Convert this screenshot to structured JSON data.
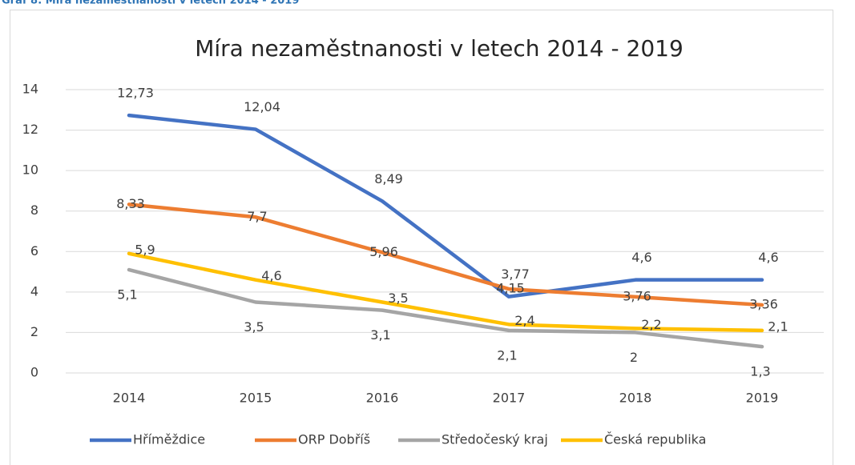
{
  "caption": "Graf 8: Míra nezaměstnanosti v letech 2014 - 2019",
  "chart_data": {
    "type": "line",
    "title": "Míra nezaměstnanosti v letech 2014 - 2019",
    "categories": [
      "2014",
      "2015",
      "2016",
      "2017",
      "2018",
      "2019"
    ],
    "series": [
      {
        "name": "Hříměždice",
        "color": "#4472c4",
        "values": [
          12.73,
          12.04,
          8.49,
          3.77,
          4.6,
          4.6
        ],
        "value_labels": [
          "12,73",
          "12,04",
          "8,49",
          "3,77",
          "4,6",
          "4,6"
        ]
      },
      {
        "name": "ORP Dobříš",
        "color": "#ed7d31",
        "values": [
          8.33,
          7.7,
          5.96,
          4.15,
          3.76,
          3.36
        ],
        "value_labels": [
          "8,33",
          "7,7",
          "5,96",
          "4,15",
          "3,76",
          "3,36"
        ]
      },
      {
        "name": "Středočeský kraj",
        "color": "#a5a5a5",
        "values": [
          5.1,
          3.5,
          3.1,
          2.1,
          2,
          1.3
        ],
        "value_labels": [
          "5,1",
          "3,5",
          "3,1",
          "2,1",
          "2",
          "1,3"
        ]
      },
      {
        "name": "Česká republika",
        "color": "#ffc000",
        "values": [
          5.9,
          4.6,
          3.5,
          2.4,
          2.2,
          2.1
        ],
        "value_labels": [
          "5,9",
          "4,6",
          "3,5",
          "2,4",
          "2,2",
          "2,1"
        ]
      }
    ],
    "ylim": [
      0,
      14
    ],
    "yticks": [
      0,
      2,
      4,
      6,
      8,
      10,
      12,
      14
    ],
    "grid": true,
    "legend": "bottom"
  }
}
